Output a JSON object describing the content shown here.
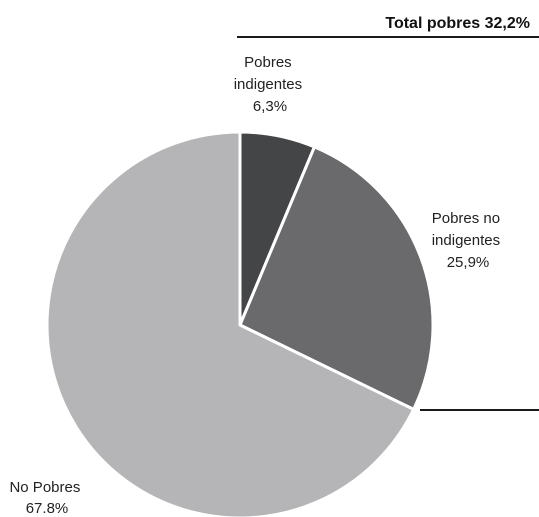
{
  "chart_data": {
    "type": "pie",
    "title": "",
    "total_annotation": "Total pobres 32,2%",
    "slices": [
      {
        "label_lines": [
          "Pobres",
          "indigentes"
        ],
        "value_text": "6,3%",
        "value": 6.3,
        "color": "#444547"
      },
      {
        "label_lines": [
          "Pobres no",
          "indigentes"
        ],
        "value_text": "25,9%",
        "value": 25.9,
        "color": "#6a6a6c"
      },
      {
        "label_lines": [
          "No Pobres"
        ],
        "value_text": "67.8%",
        "value": 67.8,
        "color": "#b5b5b7"
      }
    ]
  }
}
